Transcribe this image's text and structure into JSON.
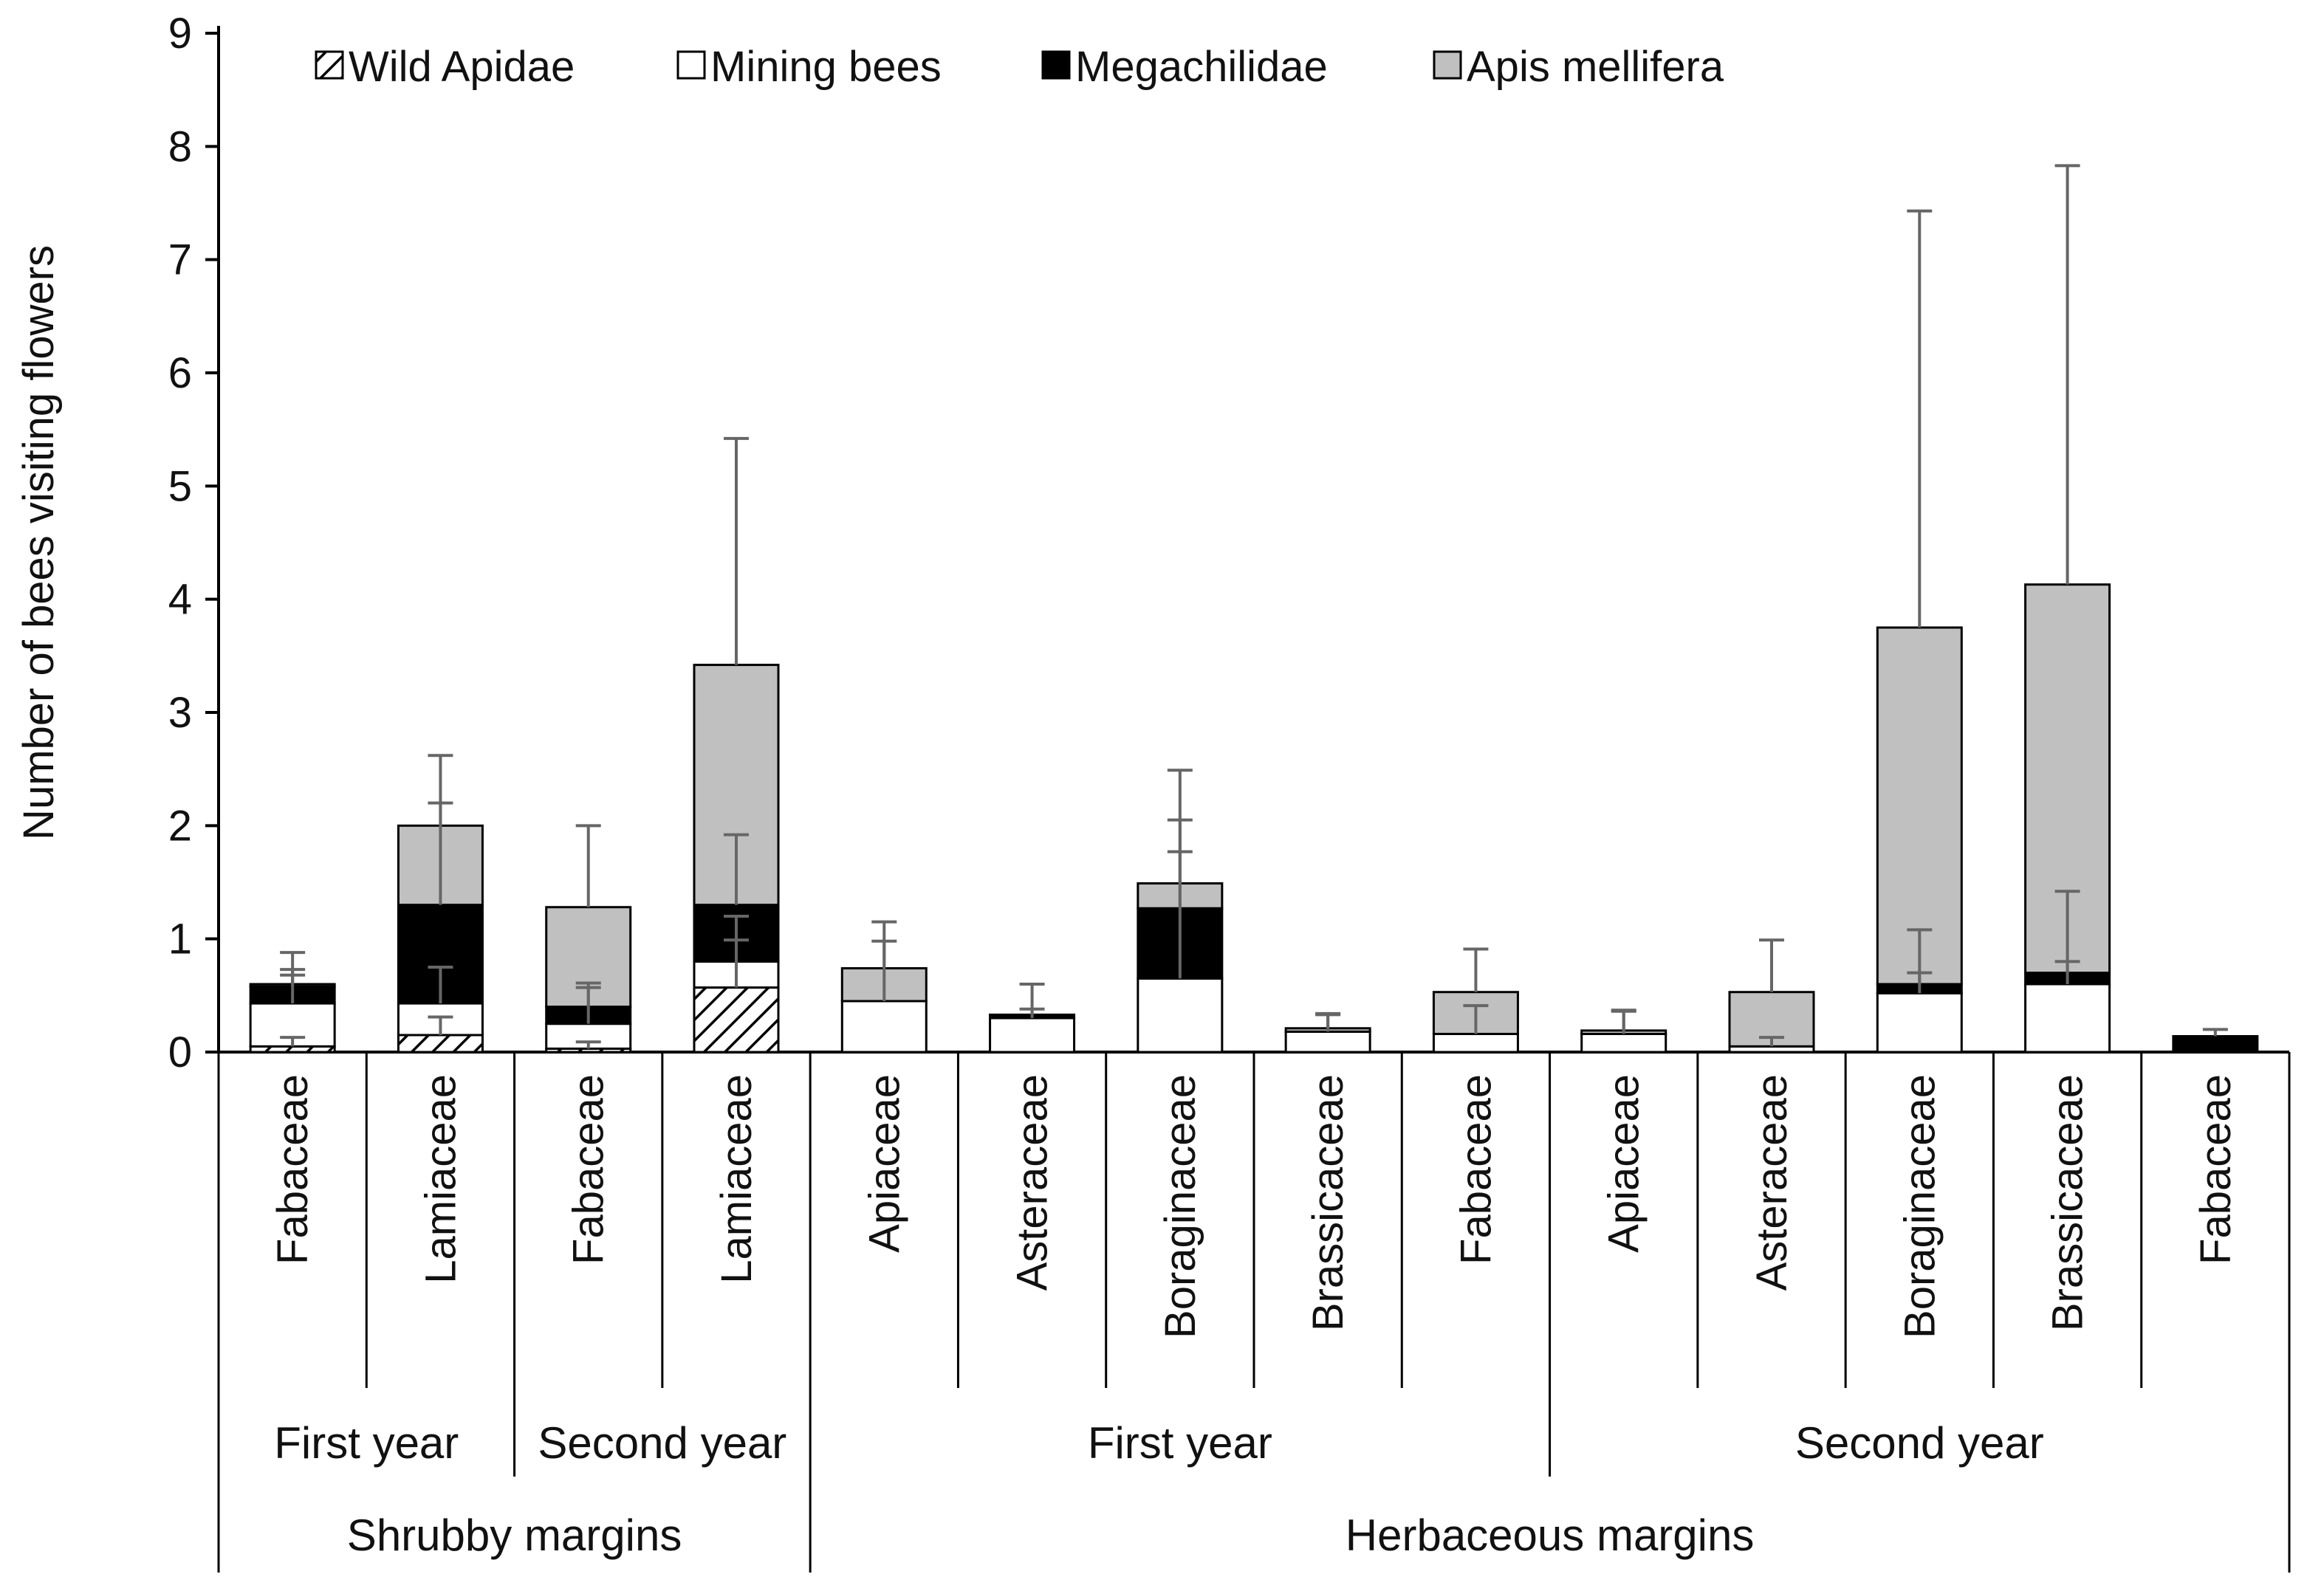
{
  "chart_data": {
    "type": "bar",
    "stacked": true,
    "title": "",
    "ylabel": "Number of bees visiting flowers",
    "xlabel": "",
    "ylim": [
      0,
      9
    ],
    "yticks": [
      0,
      1,
      2,
      3,
      4,
      5,
      6,
      7,
      8,
      9
    ],
    "grid": false,
    "legend_position": "top-left",
    "categories": [
      "Fabaceae",
      "Lamiaceae",
      "Fabaceae",
      "Lamiaceae",
      "Apiaceae",
      "Asteraceae",
      "Boraginaceae",
      "Brassicaceae",
      "Fabaceae",
      "Apiaceae",
      "Asteraceae",
      "Boraginaceae",
      "Brassicaceae",
      "Fabaceae"
    ],
    "series": [
      {
        "name": "Wild Apidae",
        "pattern": "hatch",
        "color": "#ffffff",
        "values": [
          0.05,
          0.15,
          0.03,
          0.57,
          0,
          0,
          0,
          0,
          0,
          0,
          0,
          0,
          0,
          0
        ],
        "errors": [
          0.08,
          0.16,
          0.06,
          0.42,
          0,
          0,
          0,
          0,
          0,
          0,
          0,
          0,
          0,
          0
        ]
      },
      {
        "name": "Mining bees",
        "pattern": "solid",
        "color": "#ffffff",
        "values": [
          0.38,
          0.28,
          0.22,
          0.23,
          0.45,
          0.3,
          0.65,
          0.18,
          0.16,
          0.16,
          0.05,
          0.52,
          0.6,
          0
        ],
        "errors": [
          0.3,
          0.32,
          0.36,
          0.4,
          0.53,
          0.3,
          1.12,
          0.16,
          0.25,
          0.2,
          0.08,
          0.56,
          0.82,
          0
        ]
      },
      {
        "name": "Megachilidae",
        "pattern": "solid",
        "color": "#000000",
        "values": [
          0.15,
          0.87,
          0.15,
          0.5,
          0,
          0.03,
          0.62,
          0,
          0,
          0,
          0,
          0.08,
          0.1,
          0.14
        ],
        "errors": [
          0.1,
          0.9,
          0.17,
          0.62,
          0,
          0.05,
          0.78,
          0,
          0,
          0,
          0,
          0.1,
          0.1,
          0.06
        ]
      },
      {
        "name": "Apis mellifera",
        "pattern": "solid",
        "color": "#c0c0c0",
        "values": [
          0.02,
          0.7,
          0.88,
          2.12,
          0.29,
          0,
          0.22,
          0.03,
          0.37,
          0.03,
          0.48,
          3.15,
          3.43,
          0
        ],
        "errors": [
          0.28,
          0.62,
          0.72,
          2.0,
          0.41,
          0.27,
          1.0,
          0.12,
          0.38,
          0.18,
          0.46,
          3.68,
          3.7,
          0
        ]
      }
    ],
    "groups_level1": [
      {
        "label": "First year",
        "start": 0,
        "end": 1
      },
      {
        "label": "Second  year",
        "start": 2,
        "end": 3
      },
      {
        "label": "First year",
        "start": 4,
        "end": 8
      },
      {
        "label": "Second  year",
        "start": 9,
        "end": 13
      }
    ],
    "groups_level2": [
      {
        "label": "Shrubby margins",
        "start": 0,
        "end": 3
      },
      {
        "label": "Herbaceous margins",
        "start": 4,
        "end": 13
      }
    ],
    "colors": {
      "axis": "#000000",
      "errorbar": "#666666",
      "bar_outline": "#000000"
    }
  }
}
